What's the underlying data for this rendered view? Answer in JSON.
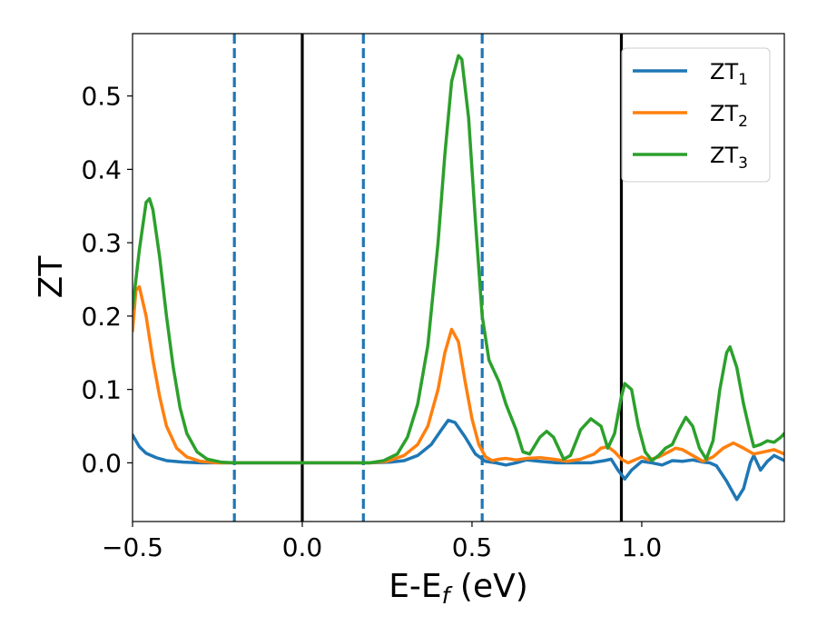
{
  "chart_data": {
    "type": "line",
    "xlabel": "E-E",
    "xlabel_sub": "f",
    "xlabel_unit": " (eV)",
    "ylabel": "ZT",
    "xlim": [
      -0.5,
      1.42
    ],
    "ylim": [
      -0.08,
      0.585
    ],
    "xticks": [
      -0.5,
      0.0,
      0.5,
      1.0
    ],
    "xtick_labels": [
      "−0.5",
      "0.0",
      "0.5",
      "1.0"
    ],
    "yticks": [
      0.0,
      0.1,
      0.2,
      0.3,
      0.4,
      0.5
    ],
    "ytick_labels": [
      "0.0",
      "0.1",
      "0.2",
      "0.3",
      "0.4",
      "0.5"
    ],
    "grid": false,
    "legend_position": "top-right",
    "vertical_lines": [
      {
        "x": 0.0,
        "style": "solid",
        "color": "#000000"
      },
      {
        "x": 0.94,
        "style": "solid",
        "color": "#000000"
      },
      {
        "x": -0.2,
        "style": "dashed",
        "color": "#1f77b4"
      },
      {
        "x": 0.18,
        "style": "dashed",
        "color": "#1f77b4"
      },
      {
        "x": 0.53,
        "style": "dashed",
        "color": "#1f77b4"
      }
    ],
    "series": [
      {
        "name": "ZT",
        "name_sub": "1",
        "color": "#1f77b4",
        "points": [
          [
            -0.5,
            0.038
          ],
          [
            -0.48,
            0.022
          ],
          [
            -0.46,
            0.013
          ],
          [
            -0.43,
            0.007
          ],
          [
            -0.4,
            0.003
          ],
          [
            -0.35,
            0.001
          ],
          [
            -0.3,
            0.0
          ],
          [
            0.2,
            0.0
          ],
          [
            0.26,
            0.001
          ],
          [
            0.3,
            0.003
          ],
          [
            0.34,
            0.01
          ],
          [
            0.38,
            0.025
          ],
          [
            0.41,
            0.045
          ],
          [
            0.43,
            0.058
          ],
          [
            0.45,
            0.055
          ],
          [
            0.48,
            0.035
          ],
          [
            0.51,
            0.012
          ],
          [
            0.54,
            0.002
          ],
          [
            0.57,
            0.0
          ],
          [
            0.6,
            -0.003
          ],
          [
            0.63,
            0.0
          ],
          [
            0.66,
            0.004
          ],
          [
            0.7,
            0.002
          ],
          [
            0.75,
            0.0
          ],
          [
            0.8,
            0.0
          ],
          [
            0.85,
            0.0
          ],
          [
            0.89,
            0.003
          ],
          [
            0.91,
            0.005
          ],
          [
            0.93,
            -0.01
          ],
          [
            0.95,
            -0.022
          ],
          [
            0.97,
            -0.01
          ],
          [
            1.0,
            0.002
          ],
          [
            1.03,
            0.0
          ],
          [
            1.06,
            -0.003
          ],
          [
            1.09,
            0.003
          ],
          [
            1.12,
            0.002
          ],
          [
            1.15,
            0.004
          ],
          [
            1.18,
            0.001
          ],
          [
            1.2,
            0.0
          ],
          [
            1.22,
            -0.004
          ],
          [
            1.25,
            -0.025
          ],
          [
            1.28,
            -0.05
          ],
          [
            1.3,
            -0.035
          ],
          [
            1.32,
            0.0
          ],
          [
            1.33,
            0.01
          ],
          [
            1.35,
            -0.01
          ],
          [
            1.37,
            0.002
          ],
          [
            1.39,
            0.01
          ],
          [
            1.42,
            0.003
          ]
        ]
      },
      {
        "name": "ZT",
        "name_sub": "2",
        "color": "#ff7f0e",
        "points": [
          [
            -0.5,
            0.18
          ],
          [
            -0.49,
            0.235
          ],
          [
            -0.48,
            0.24
          ],
          [
            -0.46,
            0.2
          ],
          [
            -0.44,
            0.14
          ],
          [
            -0.42,
            0.09
          ],
          [
            -0.4,
            0.05
          ],
          [
            -0.37,
            0.02
          ],
          [
            -0.34,
            0.008
          ],
          [
            -0.3,
            0.002
          ],
          [
            -0.25,
            0.0
          ],
          [
            0.2,
            0.0
          ],
          [
            0.25,
            0.002
          ],
          [
            0.3,
            0.01
          ],
          [
            0.34,
            0.025
          ],
          [
            0.37,
            0.05
          ],
          [
            0.4,
            0.1
          ],
          [
            0.42,
            0.15
          ],
          [
            0.44,
            0.182
          ],
          [
            0.46,
            0.165
          ],
          [
            0.48,
            0.11
          ],
          [
            0.5,
            0.06
          ],
          [
            0.52,
            0.025
          ],
          [
            0.54,
            0.008
          ],
          [
            0.56,
            0.003
          ],
          [
            0.58,
            0.005
          ],
          [
            0.6,
            0.006
          ],
          [
            0.63,
            0.004
          ],
          [
            0.66,
            0.006
          ],
          [
            0.7,
            0.007
          ],
          [
            0.74,
            0.005
          ],
          [
            0.78,
            0.002
          ],
          [
            0.82,
            0.005
          ],
          [
            0.86,
            0.012
          ],
          [
            0.88,
            0.02
          ],
          [
            0.9,
            0.022
          ],
          [
            0.92,
            0.015
          ],
          [
            0.94,
            0.005
          ],
          [
            0.96,
            0.0
          ],
          [
            0.98,
            0.004
          ],
          [
            1.0,
            0.008
          ],
          [
            1.02,
            0.004
          ],
          [
            1.05,
            0.008
          ],
          [
            1.08,
            0.015
          ],
          [
            1.1,
            0.02
          ],
          [
            1.12,
            0.018
          ],
          [
            1.15,
            0.01
          ],
          [
            1.18,
            0.002
          ],
          [
            1.21,
            0.008
          ],
          [
            1.24,
            0.02
          ],
          [
            1.27,
            0.027
          ],
          [
            1.3,
            0.02
          ],
          [
            1.33,
            0.012
          ],
          [
            1.36,
            0.015
          ],
          [
            1.39,
            0.018
          ],
          [
            1.42,
            0.012
          ]
        ]
      },
      {
        "name": "ZT",
        "name_sub": "3",
        "color": "#2ca02c",
        "points": [
          [
            -0.5,
            0.21
          ],
          [
            -0.48,
            0.29
          ],
          [
            -0.46,
            0.355
          ],
          [
            -0.45,
            0.36
          ],
          [
            -0.44,
            0.345
          ],
          [
            -0.42,
            0.28
          ],
          [
            -0.4,
            0.2
          ],
          [
            -0.38,
            0.13
          ],
          [
            -0.36,
            0.075
          ],
          [
            -0.34,
            0.04
          ],
          [
            -0.31,
            0.015
          ],
          [
            -0.28,
            0.005
          ],
          [
            -0.24,
            0.001
          ],
          [
            -0.2,
            0.0
          ],
          [
            0.2,
            0.0
          ],
          [
            0.24,
            0.003
          ],
          [
            0.28,
            0.012
          ],
          [
            0.31,
            0.035
          ],
          [
            0.34,
            0.08
          ],
          [
            0.37,
            0.16
          ],
          [
            0.4,
            0.3
          ],
          [
            0.42,
            0.42
          ],
          [
            0.44,
            0.52
          ],
          [
            0.46,
            0.555
          ],
          [
            0.47,
            0.55
          ],
          [
            0.49,
            0.47
          ],
          [
            0.51,
            0.33
          ],
          [
            0.53,
            0.2
          ],
          [
            0.55,
            0.14
          ],
          [
            0.58,
            0.11
          ],
          [
            0.6,
            0.08
          ],
          [
            0.63,
            0.045
          ],
          [
            0.65,
            0.015
          ],
          [
            0.67,
            0.012
          ],
          [
            0.7,
            0.035
          ],
          [
            0.72,
            0.043
          ],
          [
            0.74,
            0.035
          ],
          [
            0.77,
            0.005
          ],
          [
            0.79,
            0.01
          ],
          [
            0.82,
            0.045
          ],
          [
            0.85,
            0.06
          ],
          [
            0.88,
            0.05
          ],
          [
            0.9,
            0.02
          ],
          [
            0.92,
            0.04
          ],
          [
            0.94,
            0.09
          ],
          [
            0.95,
            0.108
          ],
          [
            0.97,
            0.1
          ],
          [
            0.99,
            0.05
          ],
          [
            1.01,
            0.015
          ],
          [
            1.03,
            0.003
          ],
          [
            1.05,
            0.01
          ],
          [
            1.07,
            0.02
          ],
          [
            1.09,
            0.025
          ],
          [
            1.11,
            0.045
          ],
          [
            1.13,
            0.062
          ],
          [
            1.15,
            0.05
          ],
          [
            1.17,
            0.02
          ],
          [
            1.19,
            0.005
          ],
          [
            1.21,
            0.03
          ],
          [
            1.23,
            0.1
          ],
          [
            1.25,
            0.15
          ],
          [
            1.26,
            0.158
          ],
          [
            1.28,
            0.13
          ],
          [
            1.3,
            0.08
          ],
          [
            1.32,
            0.04
          ],
          [
            1.33,
            0.022
          ],
          [
            1.35,
            0.025
          ],
          [
            1.37,
            0.03
          ],
          [
            1.39,
            0.028
          ],
          [
            1.41,
            0.035
          ],
          [
            1.42,
            0.04
          ]
        ]
      }
    ]
  }
}
